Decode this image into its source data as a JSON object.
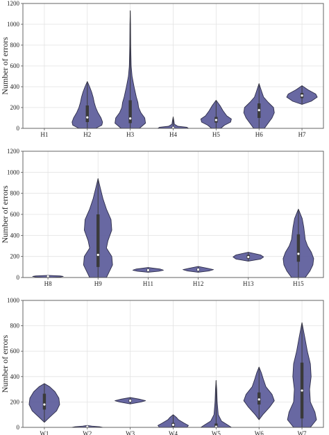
{
  "chart_data": [
    {
      "type": "violin",
      "ylabel": "Number of errors",
      "ylim": [
        0,
        1200
      ],
      "yticks": [
        0,
        200,
        400,
        600,
        800,
        1000,
        1200
      ],
      "grid": true,
      "color": "#5b5b9a",
      "categories": [
        "H1",
        "H2",
        "H3",
        "H4",
        "H5",
        "H6",
        "H7"
      ],
      "violins": [
        null,
        {
          "min": 0,
          "max": 450,
          "q1": 60,
          "median": 105,
          "q3": 220,
          "shape": [
            [
              0,
              0.55
            ],
            [
              30,
              0.95
            ],
            [
              60,
              1.0
            ],
            [
              100,
              0.9
            ],
            [
              150,
              0.7
            ],
            [
              200,
              0.55
            ],
            [
              250,
              0.45
            ],
            [
              300,
              0.38
            ],
            [
              350,
              0.28
            ],
            [
              400,
              0.15
            ],
            [
              450,
              0
            ]
          ]
        },
        {
          "min": 0,
          "max": 1130,
          "q1": 50,
          "median": 95,
          "q3": 270,
          "shape": [
            [
              0,
              0.6
            ],
            [
              50,
              1.0
            ],
            [
              100,
              0.95
            ],
            [
              150,
              0.7
            ],
            [
              200,
              0.55
            ],
            [
              250,
              0.5
            ],
            [
              300,
              0.4
            ],
            [
              400,
              0.25
            ],
            [
              500,
              0.12
            ],
            [
              600,
              0.06
            ],
            [
              800,
              0.03
            ],
            [
              1000,
              0.02
            ],
            [
              1130,
              0
            ]
          ]
        },
        {
          "min": 0,
          "max": 110,
          "q1": 0,
          "median": 5,
          "q3": 15,
          "shape": [
            [
              0,
              1.0
            ],
            [
              10,
              0.9
            ],
            [
              20,
              0.3
            ],
            [
              40,
              0.08
            ],
            [
              70,
              0.05
            ],
            [
              110,
              0
            ]
          ]
        },
        {
          "min": 0,
          "max": 270,
          "q1": 55,
          "median": 80,
          "q3": 110,
          "shape": [
            [
              0,
              0.3
            ],
            [
              30,
              0.55
            ],
            [
              60,
              0.95
            ],
            [
              90,
              1.0
            ],
            [
              120,
              0.7
            ],
            [
              170,
              0.45
            ],
            [
              220,
              0.25
            ],
            [
              270,
              0
            ]
          ]
        },
        {
          "min": 0,
          "max": 430,
          "q1": 100,
          "median": 175,
          "q3": 240,
          "shape": [
            [
              0,
              0.35
            ],
            [
              50,
              0.6
            ],
            [
              100,
              0.85
            ],
            [
              150,
              1.0
            ],
            [
              200,
              0.95
            ],
            [
              250,
              0.6
            ],
            [
              300,
              0.3
            ],
            [
              350,
              0.18
            ],
            [
              430,
              0
            ]
          ]
        },
        {
          "min": 230,
          "max": 410,
          "q1": 290,
          "median": 315,
          "q3": 340,
          "shape": [
            [
              230,
              0
            ],
            [
              260,
              0.6
            ],
            [
              300,
              1.0
            ],
            [
              330,
              0.9
            ],
            [
              370,
              0.4
            ],
            [
              410,
              0
            ]
          ]
        }
      ]
    },
    {
      "type": "violin",
      "ylabel": "Number of errors",
      "ylim": [
        0,
        1200
      ],
      "yticks": [
        0,
        200,
        400,
        600,
        800,
        1000,
        1200
      ],
      "grid": true,
      "color": "#5b5b9a",
      "categories": [
        "H8",
        "H9",
        "H11",
        "H12",
        "H13",
        "H15"
      ],
      "violins": [
        {
          "min": 0,
          "max": 20,
          "q1": 5,
          "median": 10,
          "q3": 15,
          "shape": [
            [
              0,
              0.3
            ],
            [
              5,
              0.8
            ],
            [
              10,
              1.0
            ],
            [
              15,
              0.8
            ],
            [
              20,
              0
            ]
          ]
        },
        {
          "min": 0,
          "max": 940,
          "q1": 100,
          "median": 215,
          "q3": 600,
          "shape": [
            [
              0,
              0.55
            ],
            [
              60,
              0.75
            ],
            [
              120,
              0.95
            ],
            [
              200,
              0.9
            ],
            [
              280,
              0.55
            ],
            [
              350,
              0.65
            ],
            [
              450,
              0.9
            ],
            [
              550,
              0.85
            ],
            [
              650,
              0.55
            ],
            [
              750,
              0.32
            ],
            [
              850,
              0.15
            ],
            [
              940,
              0
            ]
          ]
        },
        {
          "min": 50,
          "max": 95,
          "q1": 60,
          "median": 70,
          "q3": 80,
          "shape": [
            [
              50,
              0
            ],
            [
              60,
              0.7
            ],
            [
              70,
              1.0
            ],
            [
              80,
              0.8
            ],
            [
              95,
              0
            ]
          ]
        },
        {
          "min": 50,
          "max": 105,
          "q1": 65,
          "median": 75,
          "q3": 85,
          "shape": [
            [
              50,
              0
            ],
            [
              62,
              0.7
            ],
            [
              75,
              1.0
            ],
            [
              88,
              0.6
            ],
            [
              105,
              0
            ]
          ]
        },
        {
          "min": 155,
          "max": 240,
          "q1": 180,
          "median": 195,
          "q3": 215,
          "shape": [
            [
              155,
              0
            ],
            [
              175,
              0.8
            ],
            [
              195,
              1.0
            ],
            [
              215,
              0.8
            ],
            [
              240,
              0
            ]
          ]
        },
        {
          "min": 0,
          "max": 650,
          "q1": 150,
          "median": 225,
          "q3": 410,
          "shape": [
            [
              0,
              0.45
            ],
            [
              60,
              0.75
            ],
            [
              120,
              0.95
            ],
            [
              180,
              1.0
            ],
            [
              240,
              0.85
            ],
            [
              300,
              0.6
            ],
            [
              360,
              0.45
            ],
            [
              420,
              0.4
            ],
            [
              480,
              0.35
            ],
            [
              560,
              0.25
            ],
            [
              650,
              0
            ]
          ]
        }
      ]
    },
    {
      "type": "violin",
      "ylabel": "Number of errors",
      "ylim": [
        0,
        1000
      ],
      "yticks": [
        0,
        200,
        400,
        600,
        800,
        1000
      ],
      "grid": true,
      "color": "#5b5b9a",
      "categories": [
        "W1",
        "W2",
        "W3",
        "W4",
        "W5",
        "W6",
        "W7"
      ],
      "violins": [
        {
          "min": 40,
          "max": 345,
          "q1": 140,
          "median": 180,
          "q3": 265,
          "shape": [
            [
              40,
              0
            ],
            [
              80,
              0.35
            ],
            [
              130,
              0.8
            ],
            [
              180,
              1.0
            ],
            [
              230,
              0.95
            ],
            [
              280,
              0.7
            ],
            [
              320,
              0.35
            ],
            [
              345,
              0
            ]
          ]
        },
        {
          "min": 0,
          "max": 15,
          "q1": 2,
          "median": 5,
          "q3": 8,
          "shape": [
            [
              0,
              1.0
            ],
            [
              5,
              0.8
            ],
            [
              10,
              0.3
            ],
            [
              15,
              0
            ]
          ]
        },
        {
          "min": 185,
          "max": 235,
          "q1": 200,
          "median": 210,
          "q3": 220,
          "shape": [
            [
              185,
              0
            ],
            [
              200,
              0.7
            ],
            [
              210,
              1.0
            ],
            [
              222,
              0.6
            ],
            [
              235,
              0
            ]
          ]
        },
        {
          "min": 0,
          "max": 100,
          "q1": 5,
          "median": 20,
          "q3": 35,
          "shape": [
            [
              0,
              0.9
            ],
            [
              15,
              1.0
            ],
            [
              35,
              0.7
            ],
            [
              60,
              0.35
            ],
            [
              80,
              0.2
            ],
            [
              100,
              0
            ]
          ]
        },
        {
          "min": 0,
          "max": 370,
          "q1": 0,
          "median": 5,
          "q3": 30,
          "shape": [
            [
              0,
              1.0
            ],
            [
              20,
              0.75
            ],
            [
              50,
              0.35
            ],
            [
              100,
              0.14
            ],
            [
              200,
              0.07
            ],
            [
              300,
              0.04
            ],
            [
              370,
              0
            ]
          ]
        },
        {
          "min": 60,
          "max": 475,
          "q1": 180,
          "median": 220,
          "q3": 275,
          "shape": [
            [
              60,
              0
            ],
            [
              100,
              0.25
            ],
            [
              160,
              0.7
            ],
            [
              210,
              1.0
            ],
            [
              260,
              0.85
            ],
            [
              320,
              0.45
            ],
            [
              380,
              0.28
            ],
            [
              430,
              0.15
            ],
            [
              475,
              0
            ]
          ]
        },
        {
          "min": 0,
          "max": 825,
          "q1": 70,
          "median": 290,
          "q3": 510,
          "shape": [
            [
              0,
              0.55
            ],
            [
              60,
              0.95
            ],
            [
              120,
              0.85
            ],
            [
              200,
              0.55
            ],
            [
              300,
              0.5
            ],
            [
              400,
              0.6
            ],
            [
              500,
              0.55
            ],
            [
              600,
              0.35
            ],
            [
              700,
              0.2
            ],
            [
              825,
              0
            ]
          ]
        }
      ]
    }
  ]
}
